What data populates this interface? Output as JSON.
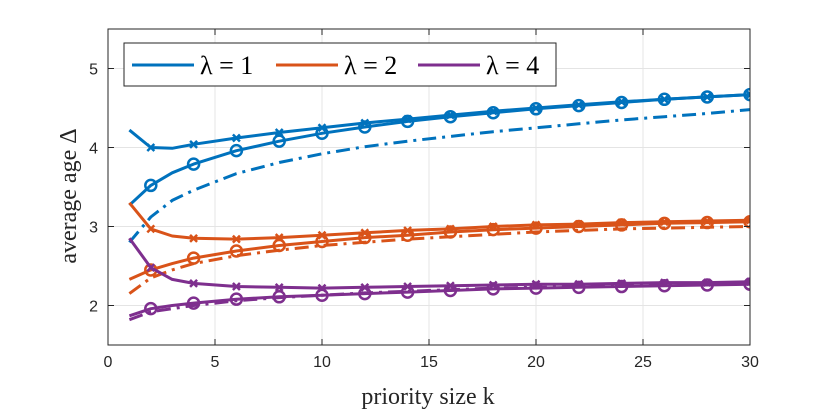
{
  "chart_data": {
    "type": "line",
    "title": "",
    "xlabel": "priority size k",
    "ylabel": "average age Δ",
    "xlim": [
      0,
      30
    ],
    "ylim": [
      1.5,
      5.5
    ],
    "xticks": [
      0,
      5,
      10,
      15,
      20,
      25,
      30
    ],
    "yticks": [
      2,
      3,
      4,
      5
    ],
    "grid": true,
    "legend_position": "top-left",
    "legend": [
      "λ = 1",
      "λ = 2",
      "λ = 4"
    ],
    "colors": {
      "lambda1": "#0072BD",
      "lambda2": "#D95319",
      "lambda4": "#7E2F8E"
    },
    "series": [
      {
        "name": "λ = 1 (x markers, solid)",
        "group": "lambda1",
        "line": "solid",
        "marker": "x",
        "x": [
          1,
          2,
          3,
          4,
          6,
          8,
          10,
          12,
          14,
          16,
          18,
          20,
          22,
          24,
          26,
          28,
          30
        ],
        "values": [
          4.22,
          4.0,
          3.99,
          4.04,
          4.12,
          4.19,
          4.25,
          4.31,
          4.36,
          4.41,
          4.46,
          4.5,
          4.54,
          4.58,
          4.61,
          4.64,
          4.67
        ]
      },
      {
        "name": "λ = 1 (o markers, solid)",
        "group": "lambda1",
        "line": "solid",
        "marker": "o",
        "x": [
          1,
          2,
          3,
          4,
          6,
          8,
          10,
          12,
          14,
          16,
          18,
          20,
          22,
          24,
          26,
          28,
          30
        ],
        "values": [
          3.27,
          3.52,
          3.68,
          3.79,
          3.96,
          4.08,
          4.18,
          4.26,
          4.33,
          4.39,
          4.44,
          4.49,
          4.53,
          4.57,
          4.61,
          4.64,
          4.67
        ]
      },
      {
        "name": "λ = 1 (dash-dot)",
        "group": "lambda1",
        "line": "dashdot",
        "marker": "none",
        "x": [
          1,
          2,
          3,
          4,
          6,
          8,
          10,
          12,
          14,
          16,
          18,
          20,
          22,
          24,
          26,
          28,
          30
        ],
        "values": [
          2.8,
          3.12,
          3.33,
          3.46,
          3.67,
          3.81,
          3.92,
          4.01,
          4.08,
          4.14,
          4.2,
          4.25,
          4.3,
          4.35,
          4.39,
          4.43,
          4.48
        ]
      },
      {
        "name": "λ = 2 (x markers, solid)",
        "group": "lambda2",
        "line": "solid",
        "marker": "x",
        "x": [
          1,
          2,
          3,
          4,
          6,
          8,
          10,
          12,
          14,
          16,
          18,
          20,
          22,
          24,
          26,
          28,
          30
        ],
        "values": [
          3.3,
          2.97,
          2.88,
          2.85,
          2.84,
          2.86,
          2.89,
          2.92,
          2.95,
          2.97,
          3.0,
          3.02,
          3.03,
          3.05,
          3.06,
          3.07,
          3.08
        ]
      },
      {
        "name": "λ = 2 (o markers, solid)",
        "group": "lambda2",
        "line": "solid",
        "marker": "o",
        "x": [
          1,
          2,
          3,
          4,
          6,
          8,
          10,
          12,
          14,
          16,
          18,
          20,
          22,
          24,
          26,
          28,
          30
        ],
        "values": [
          2.33,
          2.45,
          2.53,
          2.6,
          2.69,
          2.76,
          2.81,
          2.86,
          2.89,
          2.93,
          2.96,
          2.98,
          3.0,
          3.02,
          3.04,
          3.05,
          3.06
        ]
      },
      {
        "name": "λ = 2 (dash-dot)",
        "group": "lambda2",
        "line": "dashdot",
        "marker": "none",
        "x": [
          1,
          2,
          3,
          4,
          6,
          8,
          10,
          12,
          14,
          16,
          18,
          20,
          22,
          24,
          26,
          28,
          30
        ],
        "values": [
          2.15,
          2.35,
          2.45,
          2.53,
          2.63,
          2.7,
          2.76,
          2.8,
          2.84,
          2.87,
          2.9,
          2.93,
          2.95,
          2.97,
          2.98,
          2.99,
          3.0
        ]
      },
      {
        "name": "λ = 4 (x markers, solid)",
        "group": "lambda4",
        "line": "solid",
        "marker": "x",
        "x": [
          1,
          2,
          3,
          4,
          6,
          8,
          10,
          12,
          14,
          16,
          18,
          20,
          22,
          24,
          26,
          28,
          30
        ],
        "values": [
          2.85,
          2.48,
          2.33,
          2.28,
          2.24,
          2.23,
          2.22,
          2.23,
          2.24,
          2.25,
          2.26,
          2.27,
          2.27,
          2.28,
          2.29,
          2.29,
          2.3
        ]
      },
      {
        "name": "λ = 4 (o markers, solid)",
        "group": "lambda4",
        "line": "solid",
        "marker": "o",
        "x": [
          1,
          2,
          3,
          4,
          6,
          8,
          10,
          12,
          14,
          16,
          18,
          20,
          22,
          24,
          26,
          28,
          30
        ],
        "values": [
          1.87,
          1.96,
          2.0,
          2.03,
          2.08,
          2.11,
          2.13,
          2.15,
          2.17,
          2.19,
          2.21,
          2.22,
          2.23,
          2.24,
          2.25,
          2.26,
          2.27
        ]
      },
      {
        "name": "λ = 4 (dash-dot)",
        "group": "lambda4",
        "line": "dashdot",
        "marker": "none",
        "x": [
          1,
          2,
          3,
          4,
          6,
          8,
          10,
          12,
          14,
          16,
          18,
          20,
          22,
          24,
          26,
          28,
          30
        ],
        "values": [
          1.82,
          1.92,
          1.96,
          2.0,
          2.06,
          2.1,
          2.13,
          2.16,
          2.18,
          2.2,
          2.22,
          2.23,
          2.24,
          2.25,
          2.26,
          2.27,
          2.28
        ]
      }
    ]
  }
}
